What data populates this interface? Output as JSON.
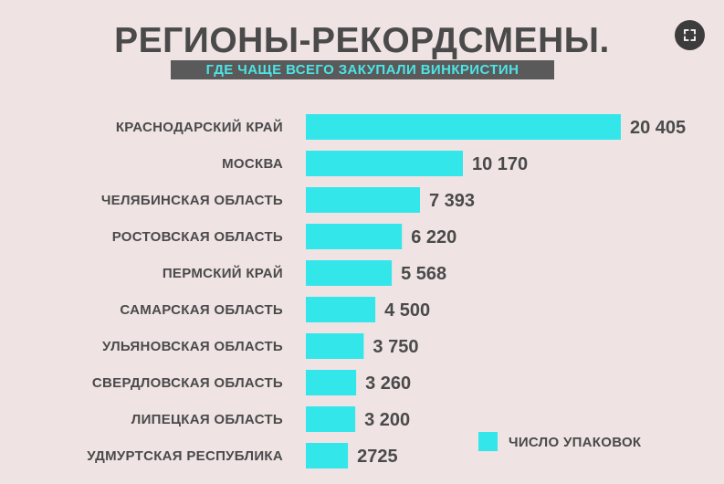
{
  "ui": {
    "expand_icon": "expand-icon"
  },
  "colors": {
    "background": "#efe3e4",
    "bar": "#33e6ea",
    "text": "#4a4a4a",
    "subtitle_bg": "#5a5a5a",
    "subtitle_text": "#4ee3e6"
  },
  "chart_data": {
    "type": "bar",
    "orientation": "horizontal",
    "title": "РЕГИОНЫ-РЕКОРДСМЕНЫ.",
    "subtitle": "ГДЕ ЧАЩЕ ВСЕГО ЗАКУПАЛИ ВИНКРИСТИН",
    "categories": [
      "КРАСНОДАРСКИЙ КРАЙ",
      "МОСКВА",
      "ЧЕЛЯБИНСКАЯ ОБЛАСТЬ",
      "РОСТОВСКАЯ ОБЛАСТЬ",
      "ПЕРМСКИЙ КРАЙ",
      "САМАРСКАЯ ОБЛАСТЬ",
      "УЛЬЯНОВСКАЯ ОБЛАСТЬ",
      "СВЕРДЛОВСКАЯ ОБЛАСТЬ",
      "ЛИПЕЦКАЯ ОБЛАСТЬ",
      "УДМУРТСКАЯ РЕСПУБЛИКА"
    ],
    "series": [
      {
        "name": "ЧИСЛО УПАКОВОК",
        "values": [
          20405,
          10170,
          7393,
          6220,
          5568,
          4500,
          3750,
          3260,
          3200,
          2725
        ],
        "value_labels": [
          "20 405",
          "10 170",
          "7 393",
          "6 220",
          "5 568",
          "4 500",
          "3 750",
          "3 260",
          "3 200",
          "2725"
        ]
      }
    ],
    "xlim": [
      0,
      20405
    ],
    "grid": false,
    "axes_visible": false,
    "legend_position": "bottom-right"
  }
}
